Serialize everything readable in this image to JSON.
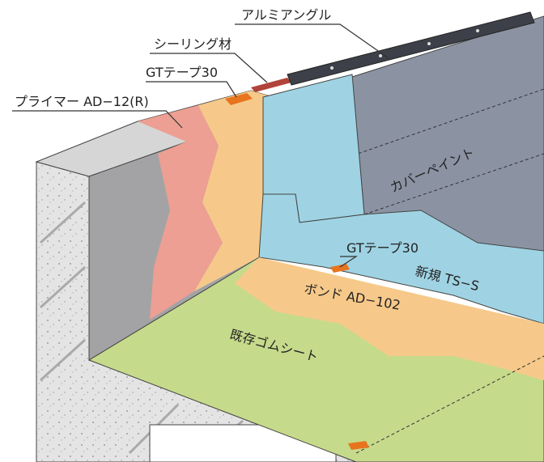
{
  "callouts": [
    {
      "text": "アルミアングル"
    },
    {
      "text": "シーリング材"
    },
    {
      "text": "GTテープ30"
    },
    {
      "text": "プライマー AD−12(R)"
    }
  ],
  "labels": [
    {
      "text": "カバーペイント"
    },
    {
      "text": "GTテープ30"
    },
    {
      "text": "新規 TS−S"
    },
    {
      "text": "ボンド AD−102"
    },
    {
      "text": "既存ゴムシート"
    }
  ]
}
